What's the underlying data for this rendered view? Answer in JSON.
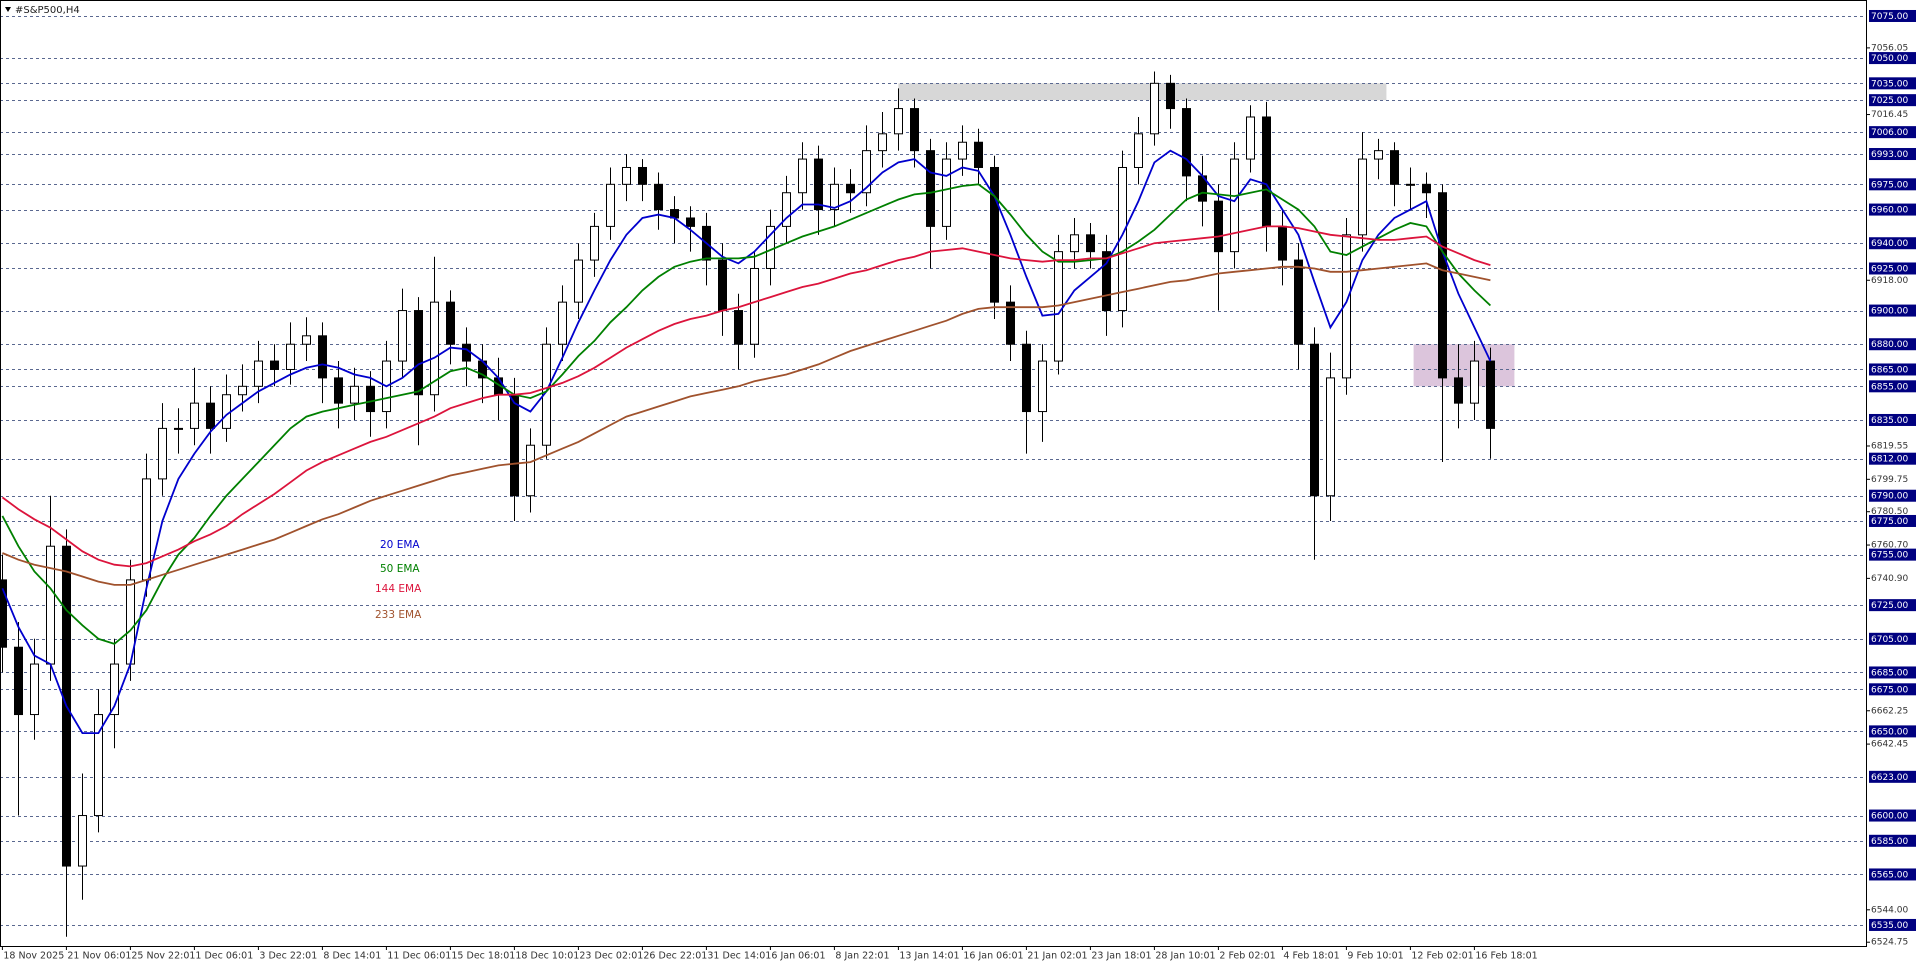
{
  "chart_data": {
    "type": "candlestick",
    "title": "#S&P500,H4",
    "categories": [
      "18 Nov 2025",
      null,
      null,
      null,
      "21 Nov 06:01",
      null,
      null,
      null,
      "25 Nov 22:01",
      null,
      null,
      null,
      "1 Dec 06:01",
      null,
      null,
      null,
      "3 Dec 22:01",
      null,
      null,
      null,
      "8 Dec 14:01",
      null,
      null,
      null,
      "11 Dec 06:01",
      null,
      null,
      null,
      "15 Dec 18:01",
      null,
      null,
      null,
      "18 Dec 10:01",
      null,
      null,
      null,
      "23 Dec 02:01",
      null,
      null,
      null,
      "26 Dec 22:01",
      null,
      null,
      null,
      "31 Dec 14:01",
      null,
      null,
      null,
      "6 Jan 06:01",
      null,
      null,
      null,
      "8 Jan 22:01",
      null,
      null,
      null,
      "13 Jan 14:01",
      null,
      null,
      null,
      "16 Jan 06:01",
      null,
      null,
      null,
      "21 Jan 02:01",
      null,
      null,
      null,
      "23 Jan 18:01",
      null,
      null,
      null,
      "28 Jan 10:01",
      null,
      null,
      null,
      "2 Feb 02:01",
      null,
      null,
      null,
      "4 Feb 18:01",
      null,
      null,
      null,
      "9 Feb 10:01",
      null,
      null,
      null,
      "12 Feb 02:01",
      null,
      null,
      null,
      "16 Feb 18:01",
      null
    ],
    "open": [
      6740,
      6700,
      6660,
      6690,
      6760,
      6570,
      6600,
      6660,
      6690,
      6740,
      6800,
      6830,
      6830,
      6845,
      6830,
      6850,
      6855,
      6870,
      6865,
      6880,
      6885,
      6860,
      6845,
      6855,
      6840,
      6870,
      6900,
      6850,
      6905,
      6880,
      6870,
      6860,
      6850,
      6790,
      6820,
      6880,
      6905,
      6930,
      6950,
      6975,
      6985,
      6975,
      6960,
      6955,
      6950,
      6930,
      6900,
      6880,
      6925,
      6950,
      6970,
      6990,
      6960,
      6975,
      6970,
      6995,
      7005,
      7020,
      6995,
      6950,
      6990,
      7000,
      6985,
      6905,
      6880,
      6840,
      6870,
      6935,
      6945,
      6935,
      6900,
      6985,
      7005,
      7035,
      7020,
      6980,
      6965,
      6935,
      6990,
      7015,
      6950,
      6930,
      6880,
      6790,
      6860,
      6945,
      6990,
      6995,
      6975,
      6975,
      6970,
      6860,
      6845,
      6870
    ],
    "high": [
      6755,
      6715,
      6705,
      6790,
      6770,
      6625,
      6675,
      6705,
      6752,
      6815,
      6845,
      6842,
      6866,
      6855,
      6862,
      6868,
      6882,
      6880,
      6893,
      6896,
      6893,
      6870,
      6866,
      6864,
      6882,
      6913,
      6908,
      6932,
      6912,
      6890,
      6880,
      6872,
      6860,
      6830,
      6890,
      6915,
      6940,
      6958,
      6985,
      6993,
      6990,
      6982,
      6968,
      6962,
      6958,
      6940,
      6910,
      6935,
      6960,
      6980,
      7000,
      6998,
      6985,
      6984,
      7010,
      7018,
      7032,
      7026,
      7002,
      7000,
      7010,
      7008,
      6992,
      6915,
      6888,
      6880,
      6945,
      6955,
      6952,
      6945,
      6995,
      7015,
      7042,
      7040,
      7026,
      6992,
      6975,
      7000,
      7022,
      7024,
      6960,
      6940,
      6890,
      6875,
      6955,
      7006,
      7002,
      7000,
      6985,
      6982,
      6975,
      6880,
      6882,
      6878
    ],
    "low": [
      6685,
      6600,
      6645,
      6680,
      6528,
      6550,
      6590,
      6640,
      6680,
      6730,
      6790,
      6815,
      6820,
      6815,
      6822,
      6840,
      6845,
      6855,
      6856,
      6870,
      6845,
      6830,
      6835,
      6825,
      6830,
      6860,
      6820,
      6840,
      6868,
      6855,
      6845,
      6835,
      6775,
      6780,
      6812,
      6870,
      6895,
      6920,
      6942,
      6965,
      6965,
      6948,
      6940,
      6935,
      6915,
      6885,
      6865,
      6872,
      6915,
      6940,
      6960,
      6945,
      6950,
      6958,
      6962,
      6985,
      6995,
      6985,
      6925,
      6942,
      6980,
      6975,
      6895,
      6870,
      6815,
      6822,
      6862,
      6925,
      6925,
      6885,
      6890,
      6975,
      6998,
      7008,
      6965,
      6950,
      6900,
      6925,
      6982,
      6935,
      6915,
      6865,
      6752,
      6775,
      6850,
      6935,
      6978,
      6962,
      6960,
      6955,
      6810,
      6830,
      6835,
      6812
    ],
    "close": [
      6700,
      6660,
      6690,
      6760,
      6570,
      6600,
      6660,
      6690,
      6740,
      6800,
      6830,
      6830,
      6845,
      6830,
      6850,
      6855,
      6870,
      6865,
      6880,
      6885,
      6860,
      6845,
      6855,
      6840,
      6870,
      6900,
      6850,
      6905,
      6880,
      6870,
      6860,
      6850,
      6790,
      6820,
      6880,
      6905,
      6930,
      6950,
      6975,
      6985,
      6975,
      6960,
      6955,
      6950,
      6930,
      6900,
      6880,
      6925,
      6950,
      6970,
      6990,
      6960,
      6975,
      6970,
      6995,
      7005,
      7020,
      6995,
      6950,
      6990,
      7000,
      6985,
      6905,
      6880,
      6840,
      6870,
      6935,
      6945,
      6935,
      6900,
      6985,
      7005,
      7035,
      7020,
      6980,
      6965,
      6935,
      6990,
      7015,
      6950,
      6930,
      6880,
      6790,
      6860,
      6945,
      6990,
      6995,
      6975,
      6975,
      6970,
      6860,
      6845,
      6870,
      6830
    ],
    "up_color": "#ffffff",
    "down_color": "#000000",
    "series": [
      {
        "name": "20 EMA",
        "color": "#0000cd",
        "values": [
          6735,
          6712,
          6695,
          6690,
          6665,
          6649,
          6649,
          6665,
          6690,
          6735,
          6775,
          6800,
          6815,
          6828,
          6838,
          6845,
          6852,
          6857,
          6862,
          6866,
          6868,
          6866,
          6862,
          6860,
          6855,
          6860,
          6868,
          6872,
          6878,
          6877,
          6870,
          6860,
          6845,
          6840,
          6852,
          6872,
          6893,
          6912,
          6930,
          6945,
          6955,
          6957,
          6955,
          6948,
          6940,
          6932,
          6928,
          6935,
          6945,
          6955,
          6963,
          6963,
          6961,
          6965,
          6973,
          6982,
          6988,
          6990,
          6982,
          6980,
          6985,
          6983,
          6968,
          6945,
          6920,
          6897,
          6898,
          6912,
          6920,
          6928,
          6945,
          6965,
          6988,
          6995,
          6990,
          6980,
          6968,
          6965,
          6978,
          6975,
          6960,
          6945,
          6917,
          6890,
          6905,
          6930,
          6945,
          6955,
          6960,
          6965,
          6935,
          6910,
          6890,
          6870
        ]
      },
      {
        "name": "50 EMA",
        "color": "#008000",
        "values": [
          6778,
          6760,
          6745,
          6735,
          6722,
          6713,
          6705,
          6702,
          6710,
          6722,
          6740,
          6755,
          6765,
          6778,
          6790,
          6800,
          6810,
          6820,
          6830,
          6837,
          6840,
          6842,
          6844,
          6846,
          6848,
          6850,
          6852,
          6858,
          6864,
          6866,
          6862,
          6856,
          6850,
          6848,
          6852,
          6862,
          6873,
          6882,
          6893,
          6902,
          6912,
          6920,
          6926,
          6929,
          6931,
          6931,
          6931,
          6932,
          6936,
          6940,
          6944,
          6947,
          6950,
          6954,
          6958,
          6962,
          6966,
          6969,
          6970,
          6972,
          6974,
          6975,
          6968,
          6957,
          6945,
          6935,
          6929,
          6929,
          6930,
          6931,
          6935,
          6941,
          6948,
          6957,
          6966,
          6970,
          6969,
          6968,
          6970,
          6972,
          6966,
          6960,
          6950,
          6935,
          6933,
          6938,
          6943,
          6948,
          6952,
          6950,
          6935,
          6922,
          6912,
          6903
        ]
      },
      {
        "name": "144 EMA",
        "color": "#dc143c",
        "values": [
          6789,
          6782,
          6776,
          6771,
          6764,
          6757,
          6752,
          6749,
          6748,
          6750,
          6754,
          6758,
          6763,
          6767,
          6772,
          6779,
          6785,
          6791,
          6798,
          6805,
          6810,
          6814,
          6818,
          6822,
          6825,
          6829,
          6833,
          6837,
          6842,
          6845,
          6848,
          6850,
          6850,
          6851,
          6854,
          6857,
          6861,
          6866,
          6872,
          6878,
          6883,
          6888,
          6892,
          6895,
          6897,
          6900,
          6902,
          6905,
          6908,
          6911,
          6914,
          6916,
          6919,
          6922,
          6924,
          6927,
          6930,
          6932,
          6935,
          6936,
          6937,
          6935,
          6933,
          6931,
          6930,
          6929,
          6930,
          6930,
          6931,
          6931,
          6934,
          6937,
          6940,
          6941,
          6942,
          6943,
          6944,
          6946,
          6948,
          6950,
          6950,
          6949,
          6947,
          6945,
          6944,
          6943,
          6942,
          6942,
          6943,
          6944,
          6938,
          6934,
          6930,
          6927
        ]
      },
      {
        "name": "233 EMA",
        "color": "#a0522d",
        "values": [
          6756,
          6752,
          6749,
          6747,
          6745,
          6742,
          6739,
          6737,
          6737,
          6740,
          6743,
          6746,
          6749,
          6752,
          6755,
          6758,
          6761,
          6764,
          6768,
          6772,
          6776,
          6779,
          6783,
          6787,
          6790,
          6793,
          6796,
          6799,
          6802,
          6804,
          6806,
          6808,
          6809,
          6810,
          6814,
          6818,
          6822,
          6827,
          6832,
          6837,
          6840,
          6843,
          6846,
          6849,
          6851,
          6853,
          6855,
          6858,
          6860,
          6862,
          6865,
          6868,
          6872,
          6876,
          6879,
          6882,
          6885,
          6888,
          6891,
          6894,
          6898,
          6901,
          6902,
          6902,
          6902,
          6902,
          6903,
          6905,
          6907,
          6909,
          6911,
          6913,
          6915,
          6917,
          6918,
          6920,
          6922,
          6923,
          6924,
          6925,
          6926,
          6926,
          6925,
          6923,
          6923,
          6924,
          6925,
          6926,
          6927,
          6928,
          6924,
          6922,
          6920,
          6918
        ]
      }
    ],
    "ylim": [
      6522.5,
      7084.5
    ],
    "yticks": [
      7056.05,
      7016.45,
      {
        "value": 6918,
        "label": "6918.00"
      },
      6819.55,
      6799.75,
      {
        "value": 6780.5,
        "label": "6780.50"
      },
      {
        "value": 6760.7,
        "label": "6760.70"
      },
      {
        "value": 6740.9,
        "label": "6740.90"
      },
      6662.25,
      6642.45,
      {
        "value": 6544,
        "label": "6544.00"
      },
      6524.75
    ],
    "levels": [
      {
        "value": 7075,
        "label": "7075.00"
      },
      {
        "value": 7050,
        "label": "7050.00"
      },
      {
        "value": 7035,
        "label": "7035.00"
      },
      {
        "value": 7025,
        "label": "7025.00"
      },
      {
        "value": 7006,
        "label": "7006.00"
      },
      {
        "value": 6993,
        "label": "6993.00"
      },
      {
        "value": 6975,
        "label": "6975.00"
      },
      {
        "value": 6960,
        "label": "6960.00"
      },
      {
        "value": 6940,
        "label": "6940.00"
      },
      {
        "value": 6925,
        "label": "6925.00"
      },
      {
        "value": 6900,
        "label": "6900.00"
      },
      {
        "value": 6880,
        "label": "6880.00"
      },
      {
        "value": 6865,
        "label": "6865.00"
      },
      {
        "value": 6855,
        "label": "6855.00"
      },
      {
        "value": 6835,
        "label": "6835.00"
      },
      {
        "value": 6812,
        "label": "6812.00"
      },
      {
        "value": 6790,
        "label": "6790.00"
      },
      {
        "value": 6775,
        "label": "6775.00"
      },
      {
        "value": 6755,
        "label": "6755.00"
      },
      {
        "value": 6725,
        "label": "6725.00"
      },
      {
        "value": 6705,
        "label": "6705.00"
      },
      {
        "value": 6685,
        "label": "6685.00"
      },
      {
        "value": 6675,
        "label": "6675.00"
      },
      {
        "value": 6650,
        "label": "6650.00"
      },
      {
        "value": 6623,
        "label": "6623.00"
      },
      {
        "value": 6600,
        "label": "6600.00"
      },
      {
        "value": 6585,
        "label": "6585.00"
      },
      {
        "value": 6565,
        "label": "6565.00"
      },
      {
        "value": 6535,
        "label": "6535.00"
      }
    ],
    "level_color": "#000080",
    "zones": [
      {
        "x": [
          56,
          86.5
        ],
        "y": [
          7025,
          7035
        ],
        "color": "#d3d3d3"
      },
      {
        "x": [
          88.2,
          94.5
        ],
        "y": [
          6855,
          6880
        ],
        "color": "#d8bfd8"
      }
    ],
    "grid": false
  }
}
